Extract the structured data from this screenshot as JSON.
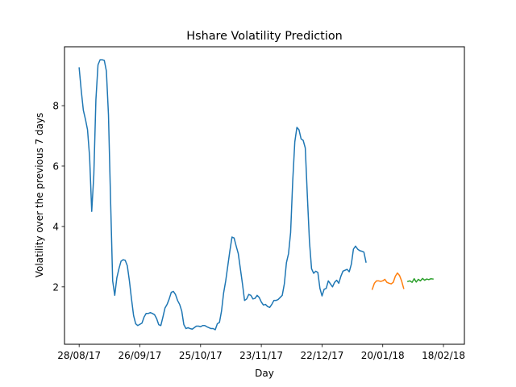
{
  "chart_data": {
    "type": "line",
    "title": "Hshare Volatility Prediction",
    "xlabel": "Day",
    "ylabel": "Volatility over the previous 7 days",
    "x_axis": {
      "type": "date",
      "ticks": [
        "2017-08-28",
        "2017-09-26",
        "2017-10-25",
        "2017-11-23",
        "2017-12-22",
        "2018-01-20",
        "2018-02-18"
      ],
      "tick_labels": [
        "28/08/17",
        "26/09/17",
        "25/10/17",
        "23/11/17",
        "22/12/17",
        "20/01/18",
        "18/02/18"
      ],
      "range": [
        "2017-08-21",
        "2018-02-28"
      ]
    },
    "y_axis": {
      "ticks": [
        2,
        4,
        6,
        8
      ],
      "tick_labels": [
        "2",
        "4",
        "6",
        "8"
      ],
      "range": [
        0.1,
        9.95
      ]
    },
    "grid": false,
    "legend": "none",
    "series": [
      {
        "color": "#1f77b4",
        "points": [
          [
            "2017-08-28",
            9.25
          ],
          [
            "2017-08-29",
            8.5
          ],
          [
            "2017-08-30",
            7.85
          ],
          [
            "2017-08-31",
            7.55
          ],
          [
            "2017-09-01",
            7.2
          ],
          [
            "2017-09-02",
            6.3
          ],
          [
            "2017-09-03",
            4.5
          ],
          [
            "2017-09-04",
            5.7
          ],
          [
            "2017-09-05",
            8.2
          ],
          [
            "2017-09-06",
            9.35
          ],
          [
            "2017-09-07",
            9.52
          ],
          [
            "2017-09-08",
            9.52
          ],
          [
            "2017-09-09",
            9.5
          ],
          [
            "2017-09-10",
            9.15
          ],
          [
            "2017-09-11",
            7.7
          ],
          [
            "2017-09-12",
            4.9
          ],
          [
            "2017-09-13",
            2.2
          ],
          [
            "2017-09-14",
            1.72
          ],
          [
            "2017-09-15",
            2.3
          ],
          [
            "2017-09-16",
            2.6
          ],
          [
            "2017-09-17",
            2.85
          ],
          [
            "2017-09-18",
            2.9
          ],
          [
            "2017-09-19",
            2.88
          ],
          [
            "2017-09-20",
            2.7
          ],
          [
            "2017-09-21",
            2.2
          ],
          [
            "2017-09-22",
            1.6
          ],
          [
            "2017-09-23",
            1.05
          ],
          [
            "2017-09-24",
            0.78
          ],
          [
            "2017-09-25",
            0.72
          ],
          [
            "2017-09-26",
            0.76
          ],
          [
            "2017-09-27",
            0.8
          ],
          [
            "2017-09-28",
            1.0
          ],
          [
            "2017-09-29",
            1.12
          ],
          [
            "2017-09-30",
            1.12
          ],
          [
            "2017-10-01",
            1.15
          ],
          [
            "2017-10-02",
            1.12
          ],
          [
            "2017-10-03",
            1.08
          ],
          [
            "2017-10-04",
            0.95
          ],
          [
            "2017-10-05",
            0.75
          ],
          [
            "2017-10-06",
            0.72
          ],
          [
            "2017-10-07",
            1.0
          ],
          [
            "2017-10-08",
            1.3
          ],
          [
            "2017-10-09",
            1.42
          ],
          [
            "2017-10-10",
            1.6
          ],
          [
            "2017-10-11",
            1.82
          ],
          [
            "2017-10-12",
            1.85
          ],
          [
            "2017-10-13",
            1.75
          ],
          [
            "2017-10-14",
            1.55
          ],
          [
            "2017-10-15",
            1.42
          ],
          [
            "2017-10-16",
            1.2
          ],
          [
            "2017-10-17",
            0.75
          ],
          [
            "2017-10-18",
            0.62
          ],
          [
            "2017-10-19",
            0.65
          ],
          [
            "2017-10-20",
            0.62
          ],
          [
            "2017-10-21",
            0.6
          ],
          [
            "2017-10-22",
            0.65
          ],
          [
            "2017-10-23",
            0.7
          ],
          [
            "2017-10-24",
            0.7
          ],
          [
            "2017-10-25",
            0.68
          ],
          [
            "2017-10-26",
            0.72
          ],
          [
            "2017-10-27",
            0.72
          ],
          [
            "2017-10-28",
            0.68
          ],
          [
            "2017-10-29",
            0.65
          ],
          [
            "2017-10-30",
            0.62
          ],
          [
            "2017-10-31",
            0.62
          ],
          [
            "2017-11-01",
            0.58
          ],
          [
            "2017-11-02",
            0.78
          ],
          [
            "2017-11-03",
            0.82
          ],
          [
            "2017-11-04",
            1.2
          ],
          [
            "2017-11-05",
            1.8
          ],
          [
            "2017-11-06",
            2.2
          ],
          [
            "2017-11-07",
            2.7
          ],
          [
            "2017-11-08",
            3.2
          ],
          [
            "2017-11-09",
            3.65
          ],
          [
            "2017-11-10",
            3.62
          ],
          [
            "2017-11-11",
            3.35
          ],
          [
            "2017-11-12",
            3.1
          ],
          [
            "2017-11-13",
            2.6
          ],
          [
            "2017-11-14",
            2.1
          ],
          [
            "2017-11-15",
            1.55
          ],
          [
            "2017-11-16",
            1.6
          ],
          [
            "2017-11-17",
            1.75
          ],
          [
            "2017-11-18",
            1.72
          ],
          [
            "2017-11-19",
            1.6
          ],
          [
            "2017-11-20",
            1.62
          ],
          [
            "2017-11-21",
            1.72
          ],
          [
            "2017-11-22",
            1.65
          ],
          [
            "2017-11-23",
            1.5
          ],
          [
            "2017-11-24",
            1.4
          ],
          [
            "2017-11-25",
            1.42
          ],
          [
            "2017-11-26",
            1.35
          ],
          [
            "2017-11-27",
            1.32
          ],
          [
            "2017-11-28",
            1.42
          ],
          [
            "2017-11-29",
            1.55
          ],
          [
            "2017-11-30",
            1.55
          ],
          [
            "2017-12-01",
            1.58
          ],
          [
            "2017-12-02",
            1.65
          ],
          [
            "2017-12-03",
            1.72
          ],
          [
            "2017-12-04",
            2.1
          ],
          [
            "2017-12-05",
            2.8
          ],
          [
            "2017-12-06",
            3.1
          ],
          [
            "2017-12-07",
            3.8
          ],
          [
            "2017-12-08",
            5.5
          ],
          [
            "2017-12-09",
            6.8
          ],
          [
            "2017-12-10",
            7.28
          ],
          [
            "2017-12-11",
            7.2
          ],
          [
            "2017-12-12",
            6.9
          ],
          [
            "2017-12-13",
            6.85
          ],
          [
            "2017-12-14",
            6.6
          ],
          [
            "2017-12-15",
            5.0
          ],
          [
            "2017-12-16",
            3.5
          ],
          [
            "2017-12-17",
            2.6
          ],
          [
            "2017-12-18",
            2.45
          ],
          [
            "2017-12-19",
            2.52
          ],
          [
            "2017-12-20",
            2.48
          ],
          [
            "2017-12-21",
            1.95
          ],
          [
            "2017-12-22",
            1.7
          ],
          [
            "2017-12-23",
            1.92
          ],
          [
            "2017-12-24",
            1.95
          ],
          [
            "2017-12-25",
            2.2
          ],
          [
            "2017-12-26",
            2.1
          ],
          [
            "2017-12-27",
            2.0
          ],
          [
            "2017-12-28",
            2.15
          ],
          [
            "2017-12-29",
            2.22
          ],
          [
            "2017-12-30",
            2.12
          ],
          [
            "2017-12-31",
            2.35
          ],
          [
            "2018-01-01",
            2.52
          ],
          [
            "2018-01-02",
            2.55
          ],
          [
            "2018-01-03",
            2.58
          ],
          [
            "2018-01-04",
            2.5
          ],
          [
            "2018-01-05",
            2.75
          ],
          [
            "2018-01-06",
            3.25
          ],
          [
            "2018-01-07",
            3.35
          ],
          [
            "2018-01-08",
            3.25
          ],
          [
            "2018-01-09",
            3.2
          ],
          [
            "2018-01-10",
            3.18
          ],
          [
            "2018-01-11",
            3.15
          ],
          [
            "2018-01-12",
            2.82
          ]
        ]
      },
      {
        "color": "#ff7f0e",
        "points": [
          [
            "2018-01-15",
            1.92
          ],
          [
            "2018-01-16",
            2.12
          ],
          [
            "2018-01-17",
            2.2
          ],
          [
            "2018-01-18",
            2.2
          ],
          [
            "2018-01-19",
            2.18
          ],
          [
            "2018-01-20",
            2.2
          ],
          [
            "2018-01-21",
            2.25
          ],
          [
            "2018-01-22",
            2.15
          ],
          [
            "2018-01-23",
            2.12
          ],
          [
            "2018-01-24",
            2.1
          ],
          [
            "2018-01-25",
            2.15
          ],
          [
            "2018-01-26",
            2.35
          ],
          [
            "2018-01-27",
            2.46
          ],
          [
            "2018-01-28",
            2.38
          ],
          [
            "2018-01-29",
            2.2
          ],
          [
            "2018-01-30",
            1.95
          ]
        ]
      },
      {
        "color": "#2ca02c",
        "points": [
          [
            "2018-02-01",
            2.18
          ],
          [
            "2018-02-02",
            2.2
          ],
          [
            "2018-02-03",
            2.15
          ],
          [
            "2018-02-04",
            2.27
          ],
          [
            "2018-02-05",
            2.16
          ],
          [
            "2018-02-06",
            2.25
          ],
          [
            "2018-02-07",
            2.2
          ],
          [
            "2018-02-08",
            2.28
          ],
          [
            "2018-02-09",
            2.22
          ],
          [
            "2018-02-10",
            2.26
          ],
          [
            "2018-02-11",
            2.24
          ],
          [
            "2018-02-12",
            2.27
          ],
          [
            "2018-02-13",
            2.26
          ]
        ]
      }
    ]
  }
}
